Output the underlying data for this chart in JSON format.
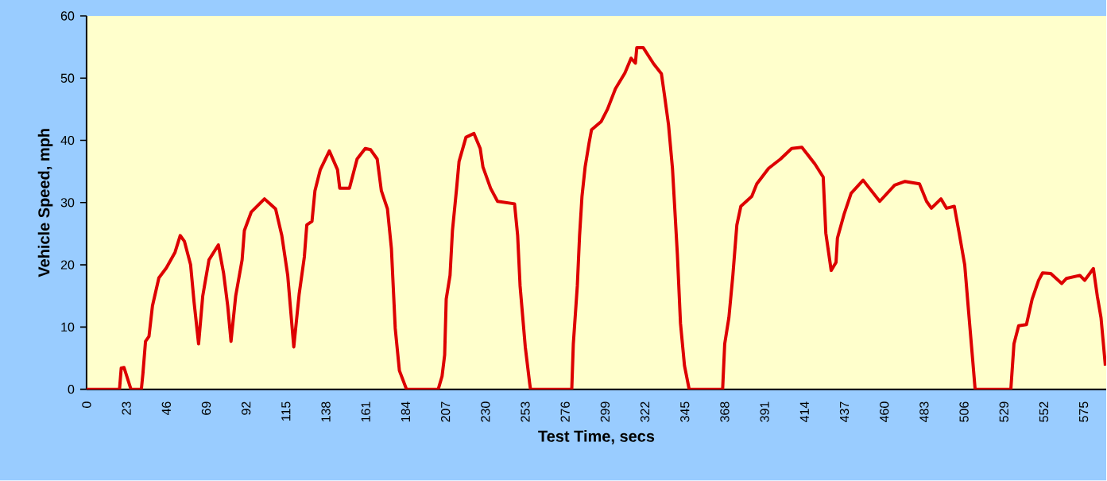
{
  "chart_data": {
    "type": "line",
    "xlabel": "Test Time, secs",
    "ylabel": "Vehicle Speed, mph",
    "xlim": [
      0,
      588
    ],
    "ylim": [
      0,
      60
    ],
    "xticks": [
      0,
      23,
      46,
      69,
      92,
      115,
      138,
      161,
      184,
      207,
      230,
      253,
      276,
      299,
      322,
      345,
      368,
      391,
      414,
      437,
      460,
      483,
      506,
      529,
      552,
      575
    ],
    "yticks": [
      0,
      10,
      20,
      30,
      40,
      50,
      60
    ],
    "series": [
      {
        "color": "#dd0000",
        "x": [
          0,
          19,
          20,
          21.6,
          25.6,
          31.6,
          32.5,
          34,
          36,
          38,
          41.7,
          46,
          51,
          54,
          56.4,
          60,
          62,
          64.6,
          67,
          70.6,
          76,
          79,
          81.4,
          83.3,
          86,
          89.7,
          91,
          95,
          102.6,
          109,
          112.6,
          116,
          119.5,
          122.6,
          125.6,
          127,
          130,
          131.7,
          134.8,
          140,
          144.7,
          146,
          151.6,
          156,
          160.7,
          163.8,
          167.6,
          170,
          173.5,
          175.8,
          178,
          180.4,
          184.5,
          202.8,
          205,
          206.5,
          207.4,
          209.6,
          211,
          213.4,
          214.8,
          218.8,
          223.4,
          227,
          228.6,
          233,
          237,
          246.8,
          248.6,
          250,
          253,
          255.5,
          256,
          279.8,
          280.7,
          283,
          284.3,
          285.7,
          287.5,
          289.8,
          291.2,
          296.7,
          300.4,
          305,
          310.4,
          314,
          316.5,
          317.3,
          321,
          327,
          331.5,
          333.3,
          335.6,
          337.9,
          340.7,
          342.5,
          344.8,
          347.5,
          366.8,
          368,
          370.4,
          372.7,
          375,
          377.3,
          383.6,
          386.5,
          393.3,
          400.2,
          406.6,
          412.5,
          420,
          424.8,
          426.3,
          429.4,
          432.2,
          433,
          436.8,
          440.9,
          447.8,
          457.4,
          466,
          472,
          480.3,
          484.4,
          487.2,
          492.7,
          495.9,
          500.4,
          503.2,
          506.4,
          508.7,
          511,
          512.4,
          533,
          534.8,
          537.5,
          542,
          545.3,
          549,
          551.3,
          556,
          562.3,
          565,
          572.8,
          575.6,
          580.6,
          582.9,
          585,
          587.5
        ],
        "values": [
          0,
          0,
          3.4,
          3.5,
          0,
          0,
          2.5,
          7.7,
          8.5,
          13.4,
          17.9,
          19.5,
          22,
          24.7,
          23.8,
          20,
          14,
          7.3,
          15,
          20.8,
          23.2,
          18.7,
          13.4,
          7.7,
          15,
          20.8,
          25.5,
          28.5,
          30.6,
          29,
          24.7,
          18.3,
          6.8,
          15.3,
          21.3,
          26.4,
          27,
          31.9,
          35.3,
          38.3,
          35.3,
          32.3,
          32.3,
          37,
          38.7,
          38.5,
          37,
          31.9,
          29,
          22.6,
          9.8,
          3,
          0,
          0,
          2.1,
          5.5,
          14.5,
          18.3,
          25.5,
          32.3,
          36.6,
          40.5,
          41.1,
          38.7,
          35.7,
          32.3,
          30.2,
          29.8,
          24.7,
          16.6,
          6.8,
          1,
          0,
          0,
          7.3,
          16.6,
          24.7,
          31,
          35.7,
          39.6,
          41.7,
          43,
          45,
          48.3,
          50.8,
          53.2,
          52.4,
          54.9,
          54.9,
          52.3,
          50.7,
          47.2,
          42.5,
          35.4,
          21.7,
          10.6,
          3.8,
          0,
          0,
          7.3,
          11.5,
          18.3,
          26.4,
          29.4,
          31,
          33,
          35.5,
          37,
          38.7,
          38.9,
          36.2,
          34.1,
          25.1,
          19.1,
          20.4,
          24.3,
          28.1,
          31.5,
          33.6,
          30.2,
          32.8,
          33.4,
          33,
          30.2,
          29.1,
          30.6,
          29.1,
          29.4,
          25.1,
          20,
          12.3,
          4.7,
          0,
          0,
          7.3,
          10.2,
          10.4,
          14.5,
          17.5,
          18.7,
          18.6,
          17,
          17.8,
          18.3,
          17.5,
          19.4,
          14.9,
          11.5,
          3.8
        ]
      }
    ]
  }
}
